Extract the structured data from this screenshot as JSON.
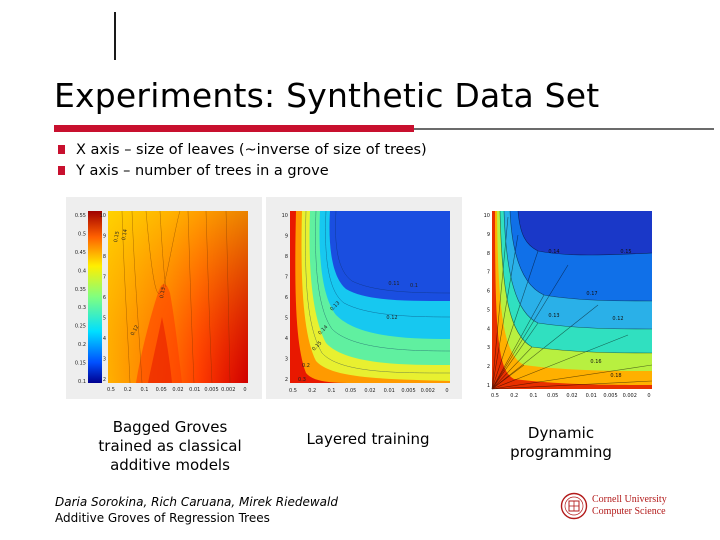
{
  "slide": {
    "title": "Experiments: Synthetic Data Set",
    "bullets": [
      "X axis – size of leaves (~inverse of size of trees)",
      "Y axis – number of trees in a grove"
    ],
    "accent_color": "#c8102e"
  },
  "plots": [
    {
      "caption": "Bagged Groves\ntrained as classical\nadditive models",
      "colormap_scale": [
        "0.55",
        "0.5",
        "0.45",
        "0.4",
        "0.35",
        "0.3",
        "0.25",
        "0.2",
        "0.15",
        "0.1"
      ],
      "y_ticks": [
        "10",
        "9",
        "8",
        "7",
        "6",
        "5",
        "4",
        "3",
        "2"
      ],
      "x_ticks": [
        "0.5",
        "0.2",
        "0.1",
        "0.05",
        "0.02",
        "0.01",
        "0.005",
        "0.002",
        "0"
      ],
      "contour_labels": [
        "0.15",
        "0.14",
        "0.13",
        "0.12"
      ]
    },
    {
      "caption": "Layered training",
      "y_ticks": [
        "10",
        "9",
        "8",
        "7",
        "6",
        "5",
        "4",
        "3",
        "2"
      ],
      "x_ticks": [
        "0.5",
        "0.2",
        "0.1",
        "0.05",
        "0.02",
        "0.01",
        "0.005",
        "0.002",
        "0"
      ],
      "contour_labels": [
        "0.3",
        "0.2",
        "0.15",
        "0.14",
        "0.13",
        "0.12",
        "0.11",
        "0.1"
      ]
    },
    {
      "caption": "Dynamic\nprogramming",
      "y_ticks": [
        "10",
        "9",
        "8",
        "7",
        "6",
        "5",
        "4",
        "3",
        "2",
        "1"
      ],
      "x_ticks": [
        "0.5",
        "0.2",
        "0.1",
        "0.05",
        "0.02",
        "0.01",
        "0.005",
        "0.002",
        "0"
      ],
      "contour_labels": [
        "0.14",
        "0.15",
        "0.17",
        "0.13",
        "0.12",
        "0.16",
        "0.18"
      ]
    }
  ],
  "footer": {
    "authors": "Daria Sorokina, Rich Caruana, Mirek Riedewald",
    "title": "Additive Groves of Regression Trees"
  },
  "logo": {
    "line1": "Cornell University",
    "line2": "Computer Science",
    "color": "#b31b1b"
  }
}
